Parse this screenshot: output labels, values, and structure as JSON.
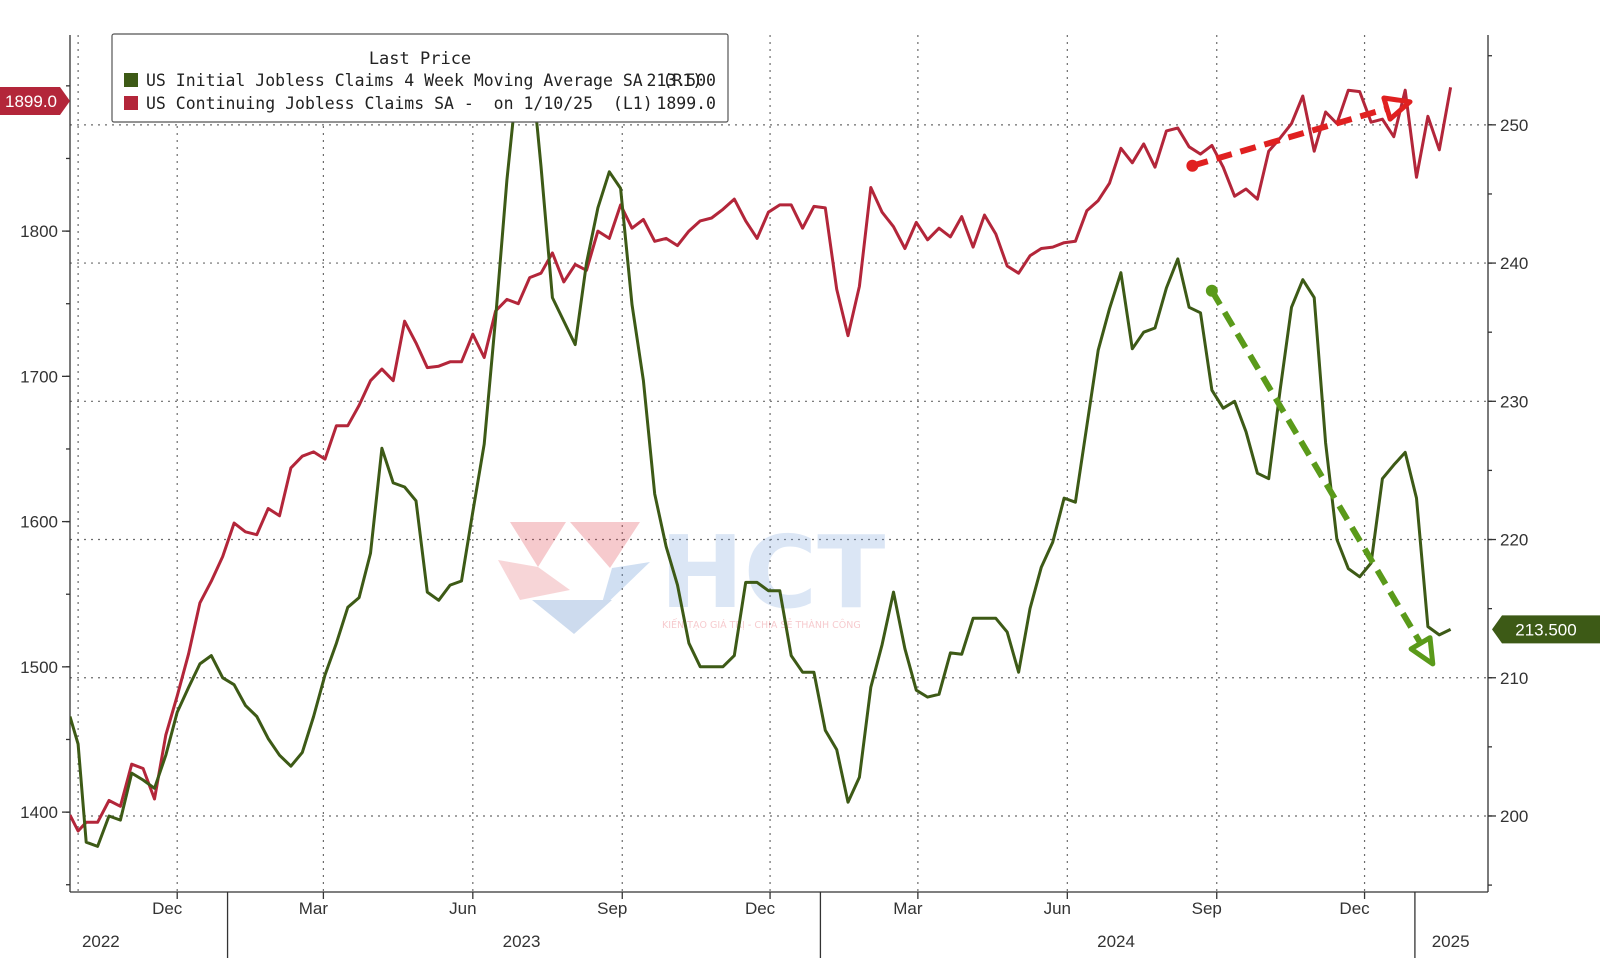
{
  "chart_data": {
    "type": "line",
    "legend": {
      "header": "Last Price",
      "placement": "top-left",
      "entries": [
        {
          "label": "US Initial Jobless Claims 4 Week Moving Average SA  (R1)",
          "value": "213.500",
          "color": "#3d5a16"
        },
        {
          "label": "US Continuing Jobless Claims SA -  on 1/10/25  (L1)",
          "value": "1899.0",
          "color": "#b3263a"
        }
      ]
    },
    "left_axis": {
      "ticks": [
        1400,
        1500,
        1600,
        1700,
        1800
      ],
      "range": [
        1345,
        1935
      ]
    },
    "right_axis": {
      "ticks": [
        200,
        210,
        220,
        230,
        240,
        250
      ],
      "range": [
        194.5,
        256.5
      ]
    },
    "x_axis": {
      "month_labels": [
        {
          "date": "2022-12-01",
          "text": "Dec"
        },
        {
          "date": "2023-03-01",
          "text": "Mar"
        },
        {
          "date": "2023-06-01",
          "text": "Jun"
        },
        {
          "date": "2023-09-01",
          "text": "Sep"
        },
        {
          "date": "2023-12-01",
          "text": "Dec"
        },
        {
          "date": "2024-03-01",
          "text": "Mar"
        },
        {
          "date": "2024-06-01",
          "text": "Jun"
        },
        {
          "date": "2024-09-01",
          "text": "Sep"
        },
        {
          "date": "2024-12-01",
          "text": "Dec"
        }
      ],
      "year_labels": [
        {
          "text": "2022",
          "center": "2022-10-15"
        },
        {
          "text": "2023",
          "center": "2023-07-01"
        },
        {
          "text": "2024",
          "center": "2024-07-01"
        },
        {
          "text": "2025",
          "center": "2025-01-23"
        }
      ],
      "year_boundaries": [
        "2023-01-01",
        "2024-01-01",
        "2025-01-01"
      ],
      "range": [
        "2022-09-26",
        "2025-02-15"
      ]
    },
    "last_value_tags": {
      "left": "1899.0",
      "right": "213.500"
    },
    "series": [
      {
        "name": "US Continuing Jobless Claims SA",
        "axis": "left",
        "color": "#b3263a",
        "points": [
          [
            "2022-09-26",
            1398
          ],
          [
            "2022-10-01",
            1387
          ],
          [
            "2022-10-06",
            1393
          ],
          [
            "2022-10-13",
            1393
          ],
          [
            "2022-10-20",
            1408
          ],
          [
            "2022-10-27",
            1404
          ],
          [
            "2022-11-03",
            1433
          ],
          [
            "2022-11-10",
            1430
          ],
          [
            "2022-11-17",
            1409
          ],
          [
            "2022-11-24",
            1453
          ],
          [
            "2022-12-01",
            1480
          ],
          [
            "2022-12-08",
            1509
          ],
          [
            "2022-12-15",
            1544
          ],
          [
            "2022-12-22",
            1559
          ],
          [
            "2022-12-29",
            1576
          ],
          [
            "2023-01-05",
            1599
          ],
          [
            "2023-01-12",
            1593
          ],
          [
            "2023-01-19",
            1591
          ],
          [
            "2023-01-26",
            1609
          ],
          [
            "2023-02-02",
            1604
          ],
          [
            "2023-02-09",
            1637
          ],
          [
            "2023-02-16",
            1645
          ],
          [
            "2023-02-23",
            1648
          ],
          [
            "2023-03-02",
            1643
          ],
          [
            "2023-03-09",
            1666
          ],
          [
            "2023-03-16",
            1666
          ],
          [
            "2023-03-23",
            1680
          ],
          [
            "2023-03-30",
            1697
          ],
          [
            "2023-04-06",
            1705
          ],
          [
            "2023-04-13",
            1697
          ],
          [
            "2023-04-20",
            1738
          ],
          [
            "2023-04-27",
            1723
          ],
          [
            "2023-05-04",
            1706
          ],
          [
            "2023-05-11",
            1707
          ],
          [
            "2023-05-18",
            1710
          ],
          [
            "2023-05-25",
            1710
          ],
          [
            "2023-06-01",
            1729
          ],
          [
            "2023-06-08",
            1713
          ],
          [
            "2023-06-15",
            1745
          ],
          [
            "2023-06-22",
            1753
          ],
          [
            "2023-06-29",
            1750
          ],
          [
            "2023-07-06",
            1768
          ],
          [
            "2023-07-13",
            1771
          ],
          [
            "2023-07-20",
            1785
          ],
          [
            "2023-07-27",
            1765
          ],
          [
            "2023-08-03",
            1777
          ],
          [
            "2023-08-10",
            1773
          ],
          [
            "2023-08-17",
            1800
          ],
          [
            "2023-08-24",
            1795
          ],
          [
            "2023-08-31",
            1818
          ],
          [
            "2023-09-07",
            1802
          ],
          [
            "2023-09-14",
            1808
          ],
          [
            "2023-09-21",
            1793
          ],
          [
            "2023-09-28",
            1795
          ],
          [
            "2023-10-05",
            1790
          ],
          [
            "2023-10-12",
            1800
          ],
          [
            "2023-10-19",
            1807
          ],
          [
            "2023-10-26",
            1809
          ],
          [
            "2023-11-02",
            1815
          ],
          [
            "2023-11-09",
            1822
          ],
          [
            "2023-11-16",
            1807
          ],
          [
            "2023-11-23",
            1795
          ],
          [
            "2023-11-30",
            1813
          ],
          [
            "2023-12-07",
            1818
          ],
          [
            "2023-12-14",
            1818
          ],
          [
            "2023-12-21",
            1802
          ],
          [
            "2023-12-28",
            1817
          ],
          [
            "2024-01-04",
            1816
          ],
          [
            "2024-01-11",
            1760
          ],
          [
            "2024-01-18",
            1728
          ],
          [
            "2024-01-25",
            1762
          ],
          [
            "2024-02-01",
            1830
          ],
          [
            "2024-02-08",
            1813
          ],
          [
            "2024-02-15",
            1803
          ],
          [
            "2024-02-22",
            1788
          ],
          [
            "2024-02-29",
            1806
          ],
          [
            "2024-03-07",
            1794
          ],
          [
            "2024-03-14",
            1802
          ],
          [
            "2024-03-21",
            1796
          ],
          [
            "2024-03-28",
            1810
          ],
          [
            "2024-04-04",
            1789
          ],
          [
            "2024-04-11",
            1811
          ],
          [
            "2024-04-18",
            1798
          ],
          [
            "2024-04-25",
            1776
          ],
          [
            "2024-05-02",
            1771
          ],
          [
            "2024-05-09",
            1783
          ],
          [
            "2024-05-16",
            1788
          ],
          [
            "2024-05-23",
            1789
          ],
          [
            "2024-05-30",
            1792
          ],
          [
            "2024-06-06",
            1793
          ],
          [
            "2024-06-13",
            1814
          ],
          [
            "2024-06-20",
            1821
          ],
          [
            "2024-06-27",
            1833
          ],
          [
            "2024-07-04",
            1857
          ],
          [
            "2024-07-11",
            1847
          ],
          [
            "2024-07-18",
            1860
          ],
          [
            "2024-07-25",
            1844
          ],
          [
            "2024-08-01",
            1869
          ],
          [
            "2024-08-08",
            1871
          ],
          [
            "2024-08-15",
            1858
          ],
          [
            "2024-08-22",
            1853
          ],
          [
            "2024-08-29",
            1859
          ],
          [
            "2024-09-05",
            1844
          ],
          [
            "2024-09-12",
            1824
          ],
          [
            "2024-09-19",
            1829
          ],
          [
            "2024-09-26",
            1822
          ],
          [
            "2024-10-03",
            1855
          ],
          [
            "2024-10-10",
            1864
          ],
          [
            "2024-10-17",
            1874
          ],
          [
            "2024-10-24",
            1893
          ],
          [
            "2024-10-31",
            1855
          ],
          [
            "2024-11-07",
            1882
          ],
          [
            "2024-11-14",
            1874
          ],
          [
            "2024-11-21",
            1897
          ],
          [
            "2024-11-28",
            1896
          ],
          [
            "2024-12-05",
            1875
          ],
          [
            "2024-12-12",
            1877
          ],
          [
            "2024-12-19",
            1865
          ],
          [
            "2024-12-26",
            1897
          ],
          [
            "2025-01-02",
            1837
          ],
          [
            "2025-01-09",
            1879
          ],
          [
            "2025-01-16",
            1856
          ],
          [
            "2025-01-23",
            1899
          ]
        ]
      },
      {
        "name": "US Initial Jobless Claims 4 Week Moving Average SA",
        "axis": "right",
        "color": "#3d5a16",
        "points": [
          [
            "2022-09-26",
            207.2
          ],
          [
            "2022-10-01",
            205.2
          ],
          [
            "2022-10-06",
            198.1
          ],
          [
            "2022-10-13",
            197.8
          ],
          [
            "2022-10-20",
            200.0
          ],
          [
            "2022-10-27",
            199.7
          ],
          [
            "2022-11-03",
            203.1
          ],
          [
            "2022-11-10",
            202.6
          ],
          [
            "2022-11-17",
            202.0
          ],
          [
            "2022-11-24",
            204.4
          ],
          [
            "2022-12-01",
            207.5
          ],
          [
            "2022-12-08",
            209.3
          ],
          [
            "2022-12-15",
            211.0
          ],
          [
            "2022-12-22",
            211.6
          ],
          [
            "2022-12-29",
            210.0
          ],
          [
            "2023-01-05",
            209.5
          ],
          [
            "2023-01-12",
            208.0
          ],
          [
            "2023-01-19",
            207.2
          ],
          [
            "2023-01-26",
            205.6
          ],
          [
            "2023-02-02",
            204.4
          ],
          [
            "2023-02-09",
            203.6
          ],
          [
            "2023-02-16",
            204.6
          ],
          [
            "2023-02-23",
            207.2
          ],
          [
            "2023-03-02",
            210.2
          ],
          [
            "2023-03-09",
            212.5
          ],
          [
            "2023-03-16",
            215.1
          ],
          [
            "2023-03-23",
            215.8
          ],
          [
            "2023-03-30",
            219.0
          ],
          [
            "2023-04-06",
            226.6
          ],
          [
            "2023-04-13",
            224.1
          ],
          [
            "2023-04-20",
            223.8
          ],
          [
            "2023-04-27",
            222.8
          ],
          [
            "2023-05-04",
            216.2
          ],
          [
            "2023-05-11",
            215.6
          ],
          [
            "2023-05-18",
            216.7
          ],
          [
            "2023-05-25",
            217.0
          ],
          [
            "2023-06-01",
            222.0
          ],
          [
            "2023-06-08",
            226.9
          ],
          [
            "2023-06-15",
            236.0
          ],
          [
            "2023-06-22",
            246.0
          ],
          [
            "2023-06-29",
            254.0
          ],
          [
            "2023-07-06",
            255.5
          ],
          [
            "2023-07-13",
            247.0
          ],
          [
            "2023-07-20",
            237.5
          ],
          [
            "2023-07-27",
            235.8
          ],
          [
            "2023-08-03",
            234.1
          ],
          [
            "2023-08-10",
            240.0
          ],
          [
            "2023-08-17",
            244.0
          ],
          [
            "2023-08-24",
            246.6
          ],
          [
            "2023-08-31",
            245.4
          ],
          [
            "2023-09-07",
            237.0
          ],
          [
            "2023-09-14",
            231.5
          ],
          [
            "2023-09-21",
            223.3
          ],
          [
            "2023-09-28",
            219.5
          ],
          [
            "2023-10-05",
            216.7
          ],
          [
            "2023-10-12",
            212.5
          ],
          [
            "2023-10-19",
            210.8
          ],
          [
            "2023-10-26",
            210.8
          ],
          [
            "2023-11-02",
            210.8
          ],
          [
            "2023-11-09",
            211.6
          ],
          [
            "2023-11-16",
            216.9
          ],
          [
            "2023-11-23",
            216.9
          ],
          [
            "2023-11-30",
            216.3
          ],
          [
            "2023-12-07",
            216.3
          ],
          [
            "2023-12-14",
            211.6
          ],
          [
            "2023-12-21",
            210.4
          ],
          [
            "2023-12-28",
            210.4
          ],
          [
            "2024-01-04",
            206.2
          ],
          [
            "2024-01-11",
            204.8
          ],
          [
            "2024-01-18",
            201.0
          ],
          [
            "2024-01-25",
            202.8
          ],
          [
            "2024-02-01",
            209.3
          ],
          [
            "2024-02-08",
            212.4
          ],
          [
            "2024-02-15",
            216.2
          ],
          [
            "2024-02-22",
            212.1
          ],
          [
            "2024-02-29",
            209.1
          ],
          [
            "2024-03-07",
            208.6
          ],
          [
            "2024-03-14",
            208.8
          ],
          [
            "2024-03-21",
            211.8
          ],
          [
            "2024-03-28",
            211.7
          ],
          [
            "2024-04-04",
            214.3
          ],
          [
            "2024-04-11",
            214.3
          ],
          [
            "2024-04-18",
            214.3
          ],
          [
            "2024-04-25",
            213.3
          ],
          [
            "2024-05-02",
            210.4
          ],
          [
            "2024-05-09",
            215.0
          ],
          [
            "2024-05-16",
            218.0
          ],
          [
            "2024-05-23",
            219.8
          ],
          [
            "2024-05-30",
            223.0
          ],
          [
            "2024-06-06",
            222.7
          ],
          [
            "2024-06-13",
            228.2
          ],
          [
            "2024-06-20",
            233.7
          ],
          [
            "2024-06-27",
            236.7
          ],
          [
            "2024-07-04",
            239.3
          ],
          [
            "2024-07-11",
            233.8
          ],
          [
            "2024-07-18",
            235.0
          ],
          [
            "2024-07-25",
            235.3
          ],
          [
            "2024-08-01",
            238.2
          ],
          [
            "2024-08-08",
            240.3
          ],
          [
            "2024-08-15",
            236.8
          ],
          [
            "2024-08-22",
            236.4
          ],
          [
            "2024-08-29",
            230.8
          ],
          [
            "2024-09-05",
            229.5
          ],
          [
            "2024-09-12",
            230.0
          ],
          [
            "2024-09-19",
            227.8
          ],
          [
            "2024-09-26",
            224.8
          ],
          [
            "2024-10-03",
            224.4
          ],
          [
            "2024-10-10",
            230.8
          ],
          [
            "2024-10-17",
            236.8
          ],
          [
            "2024-10-24",
            238.8
          ],
          [
            "2024-10-31",
            237.5
          ],
          [
            "2024-11-07",
            227.0
          ],
          [
            "2024-11-14",
            220.0
          ],
          [
            "2024-11-21",
            217.9
          ],
          [
            "2024-11-28",
            217.3
          ],
          [
            "2024-12-05",
            218.3
          ],
          [
            "2024-12-12",
            224.4
          ],
          [
            "2024-12-19",
            225.4
          ],
          [
            "2024-12-26",
            226.3
          ],
          [
            "2025-01-02",
            223.0
          ],
          [
            "2025-01-09",
            213.7
          ],
          [
            "2025-01-16",
            213.1
          ],
          [
            "2025-01-23",
            213.5
          ]
        ]
      }
    ],
    "trend_arrows": [
      {
        "axis": "left",
        "color": "#e02020",
        "from": [
          "2024-08-17",
          1845
        ],
        "to": [
          "2024-12-29",
          1889
        ]
      },
      {
        "axis": "right",
        "color": "#5a9a1a",
        "from": [
          "2024-08-29",
          238.0
        ],
        "to": [
          "2025-01-12",
          211.0
        ]
      }
    ],
    "watermark": {
      "brand": "HCT",
      "tagline": "KIẾN TẠO GIÁ TRỊ - CHIA SẺ THÀNH CÔNG"
    }
  }
}
